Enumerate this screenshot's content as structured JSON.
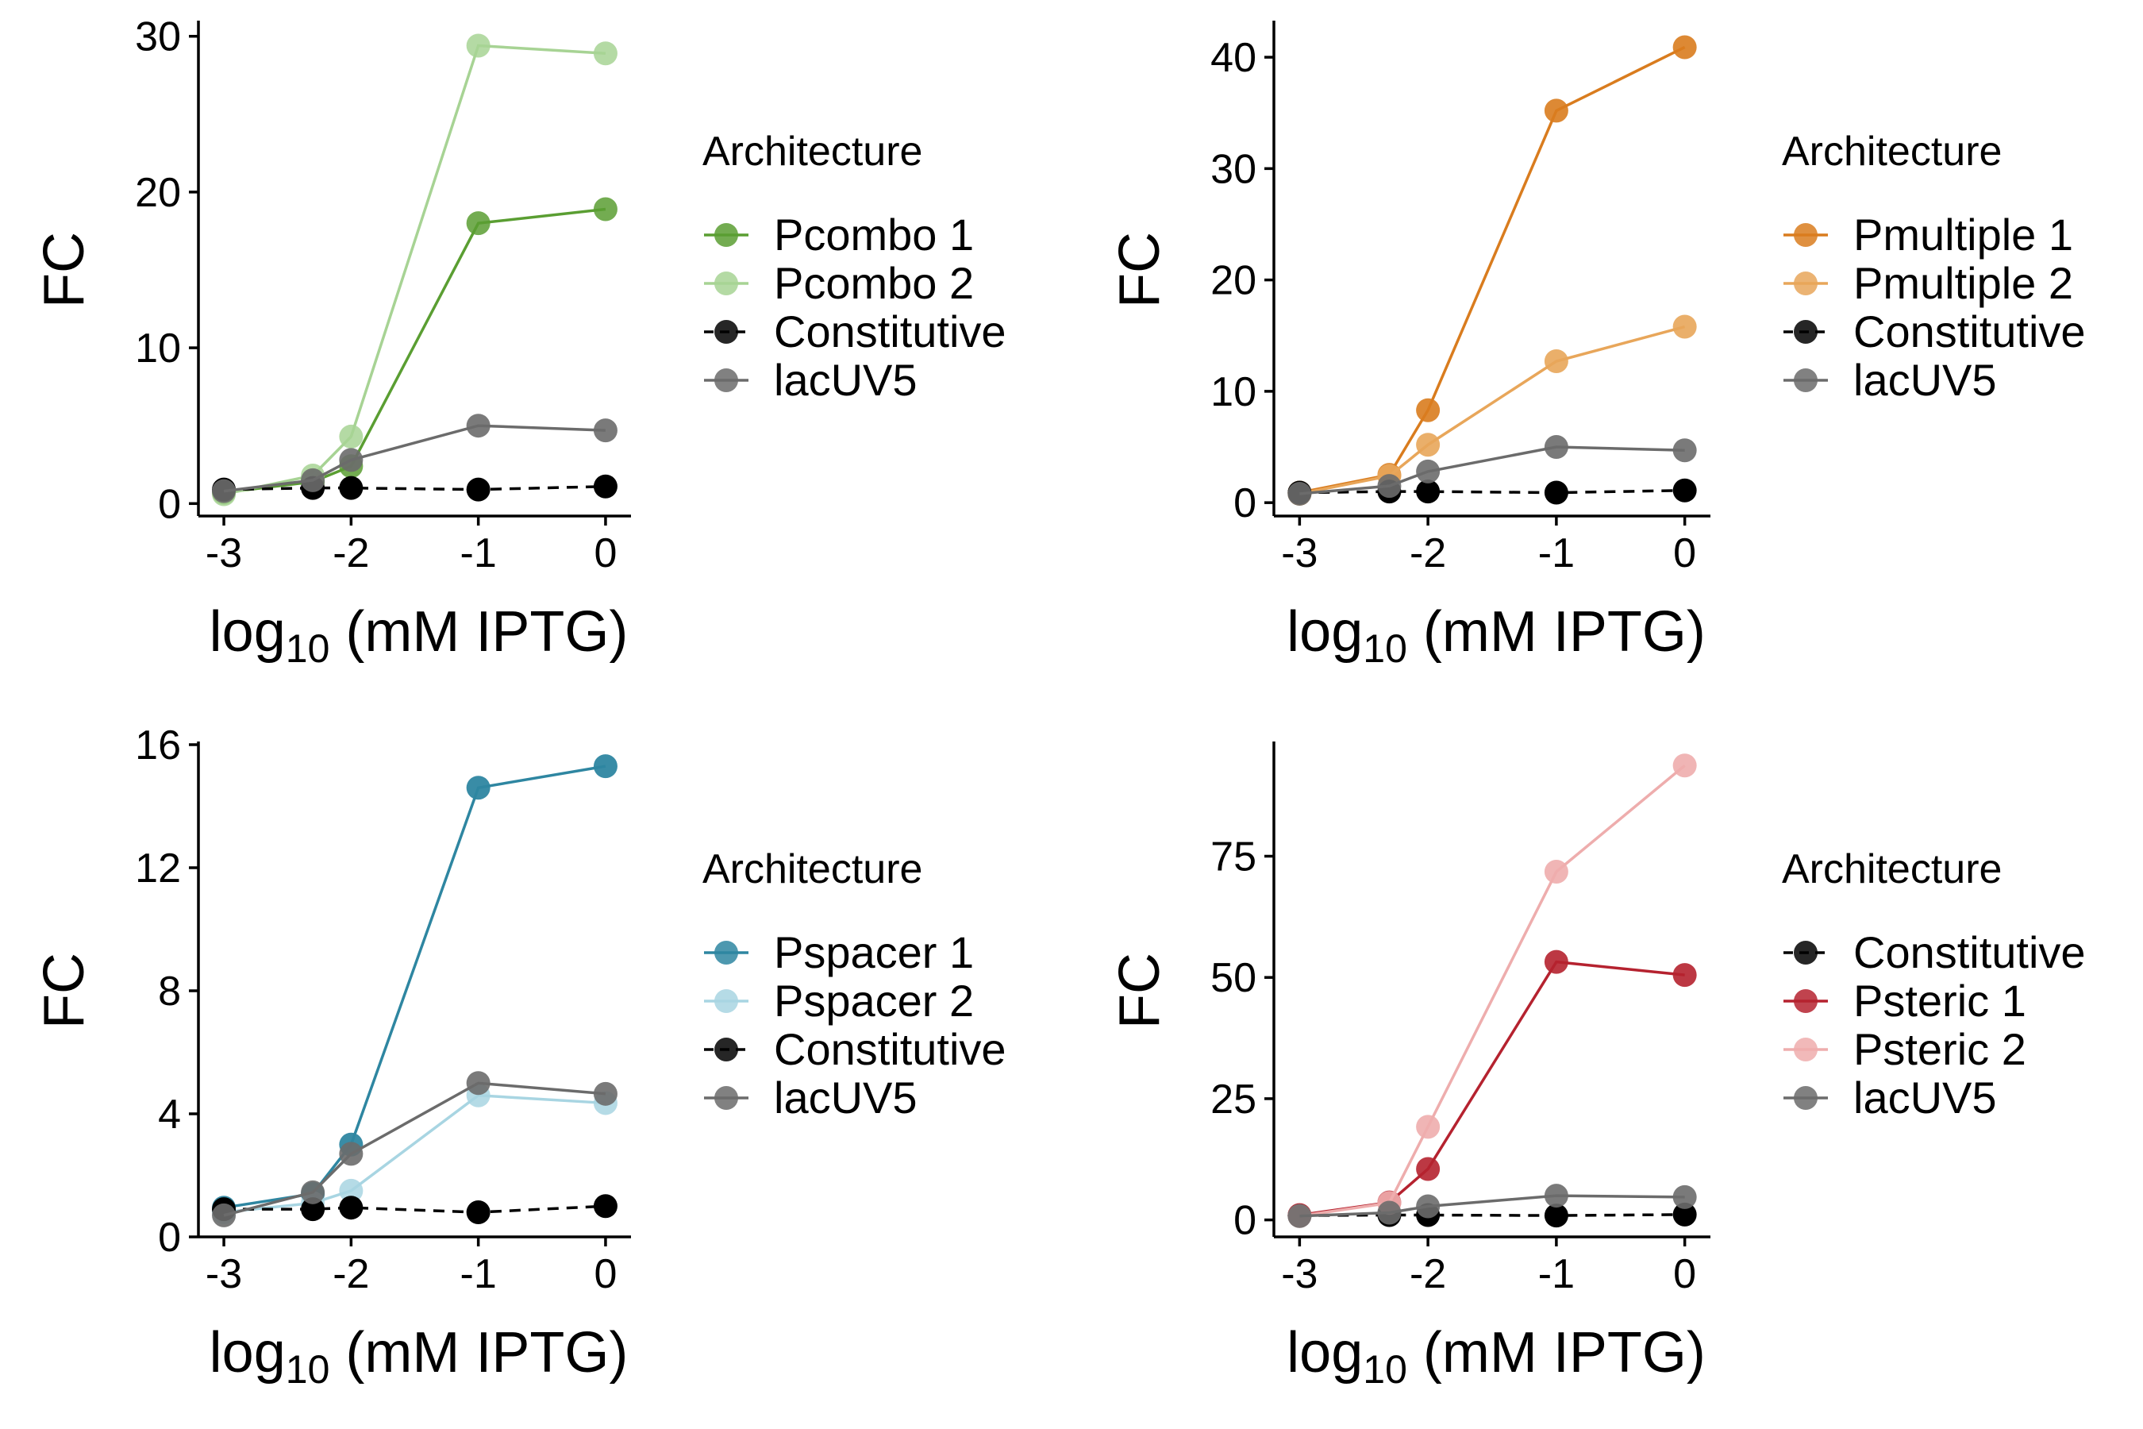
{
  "chart_data": [
    {
      "type": "line",
      "ylabel": "FC",
      "xlabel_main": "log",
      "xlabel_sub": "10",
      "xlabel_rest": " (mM IPTG)",
      "xlim": [
        -3.2,
        0.2
      ],
      "ylim": [
        -0.8,
        30.8
      ],
      "x_ticks": [
        -3,
        -2,
        -1,
        0
      ],
      "x_tick_labels": [
        "-3",
        "-2",
        "-1",
        "0"
      ],
      "y_ticks": [
        0,
        10,
        20,
        30
      ],
      "y_tick_labels": [
        "0",
        "10",
        "20",
        "30"
      ],
      "grid": false,
      "legend_title": "Architecture",
      "legend_position": "right",
      "series": [
        {
          "name": "Pcombo 1",
          "color": "#5a9e32",
          "point_alpha": 0.85,
          "dashed": false,
          "x": [
            -3,
            -2.301,
            -2,
            -1,
            0
          ],
          "y": [
            0.7,
            1.4,
            2.4,
            18.0,
            18.9
          ]
        },
        {
          "name": "Pcombo 2",
          "color": "#a7d394",
          "point_alpha": 0.85,
          "dashed": false,
          "x": [
            -3,
            -2.301,
            -2,
            -1,
            0
          ],
          "y": [
            0.6,
            1.8,
            4.3,
            29.4,
            28.9
          ]
        },
        {
          "name": "Constitutive",
          "color": "#000000",
          "point_alpha": 1.0,
          "dashed": true,
          "x": [
            -3,
            -2.301,
            -2,
            -1,
            0
          ],
          "y": [
            0.9,
            1.0,
            1.0,
            0.9,
            1.1
          ]
        },
        {
          "name": "lacUV5",
          "color": "#6b6b6b",
          "point_alpha": 0.9,
          "dashed": false,
          "x": [
            -3,
            -2.301,
            -2,
            -1,
            0
          ],
          "y": [
            0.8,
            1.5,
            2.8,
            5.0,
            4.7
          ]
        }
      ]
    },
    {
      "type": "line",
      "ylabel": "FC",
      "xlabel_main": "log",
      "xlabel_sub": "10",
      "xlabel_rest": " (mM IPTG)",
      "xlim": [
        -3.2,
        0.2
      ],
      "ylim": [
        -1.2,
        43.0
      ],
      "x_ticks": [
        -3,
        -2,
        -1,
        0
      ],
      "x_tick_labels": [
        "-3",
        "-2",
        "-1",
        "0"
      ],
      "y_ticks": [
        0,
        10,
        20,
        30,
        40
      ],
      "y_tick_labels": [
        "0",
        "10",
        "20",
        "30",
        "40"
      ],
      "grid": false,
      "legend_title": "Architecture",
      "legend_position": "right",
      "series": [
        {
          "name": "Pmultiple 1",
          "color": "#d97c1e",
          "point_alpha": 0.9,
          "dashed": false,
          "x": [
            -3,
            -2.301,
            -2,
            -1,
            0
          ],
          "y": [
            0.9,
            2.5,
            8.3,
            35.2,
            40.9
          ]
        },
        {
          "name": "Pmultiple 2",
          "color": "#e8a65a",
          "point_alpha": 0.9,
          "dashed": false,
          "x": [
            -3,
            -2.301,
            -2,
            -1,
            0
          ],
          "y": [
            0.8,
            2.4,
            5.2,
            12.7,
            15.8
          ]
        },
        {
          "name": "Constitutive",
          "color": "#000000",
          "point_alpha": 1.0,
          "dashed": true,
          "x": [
            -3,
            -2.301,
            -2,
            -1,
            0
          ],
          "y": [
            0.9,
            1.0,
            1.0,
            0.9,
            1.1
          ]
        },
        {
          "name": "lacUV5",
          "color": "#6b6b6b",
          "point_alpha": 0.9,
          "dashed": false,
          "x": [
            -3,
            -2.301,
            -2,
            -1,
            0
          ],
          "y": [
            0.8,
            1.5,
            2.8,
            5.0,
            4.7
          ]
        }
      ]
    },
    {
      "type": "line",
      "ylabel": "FC",
      "xlabel_main": "log",
      "xlabel_sub": "10",
      "xlabel_rest": " (mM IPTG)",
      "xlim": [
        -3.2,
        0.2
      ],
      "ylim": [
        0,
        16
      ],
      "x_ticks": [
        -3,
        -2,
        -1,
        0
      ],
      "x_tick_labels": [
        "-3",
        "-2",
        "-1",
        "0"
      ],
      "y_ticks": [
        0,
        4,
        8,
        12,
        16
      ],
      "y_tick_labels": [
        "0",
        "4",
        "8",
        "12",
        "16"
      ],
      "grid": false,
      "legend_title": "Architecture",
      "legend_position": "right",
      "series": [
        {
          "name": "Pspacer 1",
          "color": "#2e86a1",
          "point_alpha": 0.95,
          "dashed": false,
          "x": [
            -3,
            -2.301,
            -2,
            -1,
            0
          ],
          "y": [
            0.95,
            1.4,
            3.0,
            14.6,
            15.3
          ]
        },
        {
          "name": "Pspacer 2",
          "color": "#a8d5e2",
          "point_alpha": 0.85,
          "dashed": false,
          "x": [
            -3,
            -2.301,
            -2,
            -1,
            0
          ],
          "y": [
            0.8,
            1.1,
            1.5,
            4.6,
            4.35
          ]
        },
        {
          "name": "Constitutive",
          "color": "#000000",
          "point_alpha": 1.0,
          "dashed": true,
          "x": [
            -3,
            -2.301,
            -2,
            -1,
            0
          ],
          "y": [
            0.9,
            0.9,
            0.95,
            0.8,
            1.0
          ]
        },
        {
          "name": "lacUV5",
          "color": "#6b6b6b",
          "point_alpha": 0.9,
          "dashed": false,
          "x": [
            -3,
            -2.301,
            -2,
            -1,
            0
          ],
          "y": [
            0.7,
            1.45,
            2.7,
            5.0,
            4.65
          ]
        }
      ]
    },
    {
      "type": "line",
      "ylabel": "FC",
      "xlabel_main": "log",
      "xlabel_sub": "10",
      "xlabel_rest": " (mM IPTG)",
      "xlim": [
        -3.2,
        0.2
      ],
      "ylim": [
        -3.5,
        98.0
      ],
      "x_ticks": [
        -3,
        -2,
        -1,
        0
      ],
      "x_tick_labels": [
        "-3",
        "-2",
        "-1",
        "0"
      ],
      "y_ticks": [
        0,
        25,
        50,
        75
      ],
      "y_tick_labels": [
        "0",
        "25",
        "50",
        "75"
      ],
      "grid": false,
      "legend_title": "Architecture",
      "legend_position": "right",
      "series": [
        {
          "name": "Constitutive",
          "color": "#000000",
          "point_alpha": 1.0,
          "dashed": true,
          "x": [
            -3,
            -2.301,
            -2,
            -1,
            0
          ],
          "y": [
            0.9,
            1.0,
            1.0,
            0.9,
            1.1
          ]
        },
        {
          "name": "Psteric 1",
          "color": "#b5222f",
          "point_alpha": 0.9,
          "dashed": false,
          "x": [
            -3,
            -2.301,
            -2,
            -1,
            0
          ],
          "y": [
            1.0,
            3.6,
            10.5,
            53.2,
            50.5
          ]
        },
        {
          "name": "Psteric 2",
          "color": "#eeadad",
          "point_alpha": 0.9,
          "dashed": false,
          "x": [
            -3,
            -2.301,
            -2,
            -1,
            0
          ],
          "y": [
            0.8,
            3.5,
            19.2,
            71.8,
            93.7
          ]
        },
        {
          "name": "lacUV5",
          "color": "#6b6b6b",
          "point_alpha": 0.9,
          "dashed": false,
          "x": [
            -3,
            -2.301,
            -2,
            -1,
            0
          ],
          "y": [
            0.8,
            1.5,
            2.8,
            5.0,
            4.7
          ]
        }
      ]
    }
  ]
}
